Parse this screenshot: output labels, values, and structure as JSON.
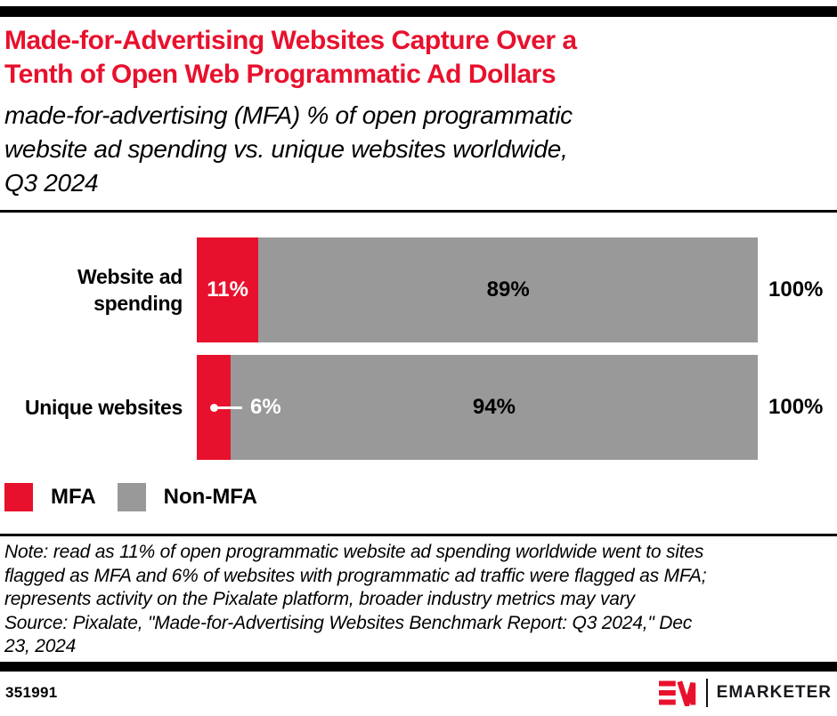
{
  "brand": {
    "red": "#E8112D",
    "gray": "#999999",
    "black": "#000000"
  },
  "header": {
    "title": "Made-for-Advertising Websites Capture Over a Tenth of Open Web Programmatic Ad Dollars",
    "title_lines": [
      "Made-for-Advertising Websites Capture Over a",
      "Tenth of Open Web Programmatic Ad Dollars"
    ],
    "subtitle": "made-for-advertising (MFA) % of open programmatic website ad spending vs. unique websites worldwide, Q3 2024",
    "subtitle_lines": [
      "made-for-advertising (MFA) % of open programmatic",
      "website ad spending vs. unique websites worldwide,",
      "Q3 2024"
    ]
  },
  "chart_data": {
    "type": "bar",
    "orientation": "horizontal",
    "stacked": true,
    "unit": "%",
    "title": "Made-for-Advertising Websites Capture Over a Tenth of Open Web Programmatic Ad Dollars",
    "subtitle": "made-for-advertising (MFA) % of open programmatic website ad spending vs. unique websites worldwide, Q3 2024",
    "categories": [
      "Website ad spending",
      "Unique websites"
    ],
    "series": [
      {
        "name": "MFA",
        "color": "#E8112D",
        "values": [
          11,
          6
        ]
      },
      {
        "name": "Non-MFA",
        "color": "#999999",
        "values": [
          89,
          94
        ]
      }
    ],
    "row_totals": [
      100,
      100
    ],
    "xlim": [
      0,
      100
    ],
    "grid": false,
    "legend_position": "bottom-left"
  },
  "rows": [
    {
      "label": "Website ad spending",
      "label_line1": "Website ad",
      "label_line2": "spending",
      "mfa_value": 11,
      "mfa_label": "11%",
      "nonmfa_value": 89,
      "nonmfa_label": "89%",
      "total_label": "100%"
    },
    {
      "label": "Unique websites",
      "mfa_value": 6,
      "mfa_label": "6%",
      "nonmfa_value": 94,
      "nonmfa_label": "94%",
      "total_label": "100%"
    }
  ],
  "legend": {
    "items": [
      {
        "label": "MFA",
        "color": "#E8112D"
      },
      {
        "label": "Non-MFA",
        "color": "#999999"
      }
    ]
  },
  "note": {
    "lines": [
      "Note: read as 11% of open programmatic website ad spending worldwide went to sites",
      "flagged as MFA and 6% of websites with programmatic ad traffic were flagged as MFA;",
      "represents activity on the Pixalate platform, broader industry metrics may vary",
      "Source: Pixalate, \"Made-for-Advertising Websites Benchmark Report: Q3 2024,\" Dec",
      "23, 2024"
    ],
    "full_note": "Note: read as 11% of open programmatic website ad spending worldwide went to sites flagged as MFA and 6% of websites with programmatic ad traffic were flagged as MFA; represents activity on the Pixalate platform, broader industry metrics may vary",
    "source": "Source: Pixalate, \"Made-for-Advertising Websites Benchmark Report: Q3 2024,\" Dec 23, 2024"
  },
  "footer": {
    "chart_id": "351991",
    "brand_name": "EMARKETER"
  }
}
